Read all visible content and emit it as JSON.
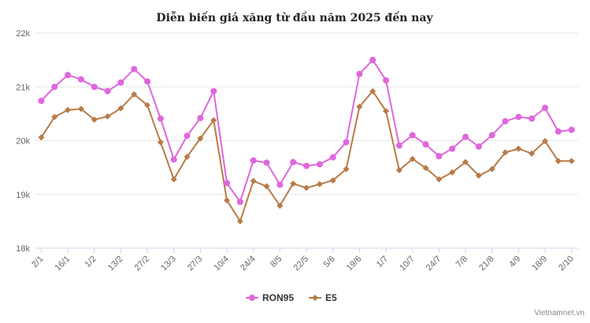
{
  "chart_data": {
    "type": "line",
    "title": "Diễn biến giá xăng từ đầu năm 2025 đến nay",
    "xlabel": "",
    "ylabel": "",
    "ylim": [
      18000,
      22000
    ],
    "yticks": [
      18000,
      19000,
      20000,
      21000,
      22000
    ],
    "ytick_labels": [
      "18k",
      "19k",
      "20k",
      "21k",
      "22k"
    ],
    "grid": true,
    "legend_position": "bottom-center",
    "categories": [
      "2/1",
      "",
      "16/1",
      "",
      "1/2",
      "",
      "13/2",
      "",
      "27/2",
      "",
      "13/3",
      "",
      "27/3",
      "",
      "10/4",
      "",
      "24/4",
      "",
      "8/5",
      "",
      "22/5",
      "",
      "5/6",
      "",
      "19/6",
      "",
      "1/7",
      "",
      "10/7",
      "",
      "24/7",
      "",
      "7/8",
      "",
      "21/8",
      "",
      "4/9",
      "",
      "18/9",
      "",
      "2/10"
    ],
    "series": [
      {
        "name": "RON95",
        "color": "#e066dd",
        "marker": "circle",
        "values": [
          20740,
          21000,
          21220,
          21140,
          21000,
          20920,
          21080,
          21330,
          21100,
          20410,
          19650,
          20090,
          20420,
          20920,
          19210,
          18860,
          19630,
          19590,
          19180,
          19600,
          19530,
          19560,
          19690,
          19970,
          21240,
          21500,
          21120,
          19910,
          20100,
          19930,
          19710,
          19850,
          20070,
          19890,
          20100,
          20360,
          20440,
          20410,
          20610,
          20170,
          20200
        ]
      },
      {
        "name": "E5",
        "color": "#b87b47",
        "marker": "diamond",
        "values": [
          20060,
          20440,
          20570,
          20590,
          20390,
          20450,
          20600,
          20860,
          20660,
          19970,
          19280,
          19700,
          20040,
          20380,
          18890,
          18500,
          19250,
          19150,
          18790,
          19200,
          19120,
          19190,
          19260,
          19470,
          20630,
          20920,
          20550,
          19450,
          19660,
          19490,
          19280,
          19410,
          19600,
          19350,
          19470,
          19780,
          19850,
          19760,
          19990,
          19620,
          19620
        ]
      }
    ]
  },
  "credit": "Vietnamnet.vn"
}
